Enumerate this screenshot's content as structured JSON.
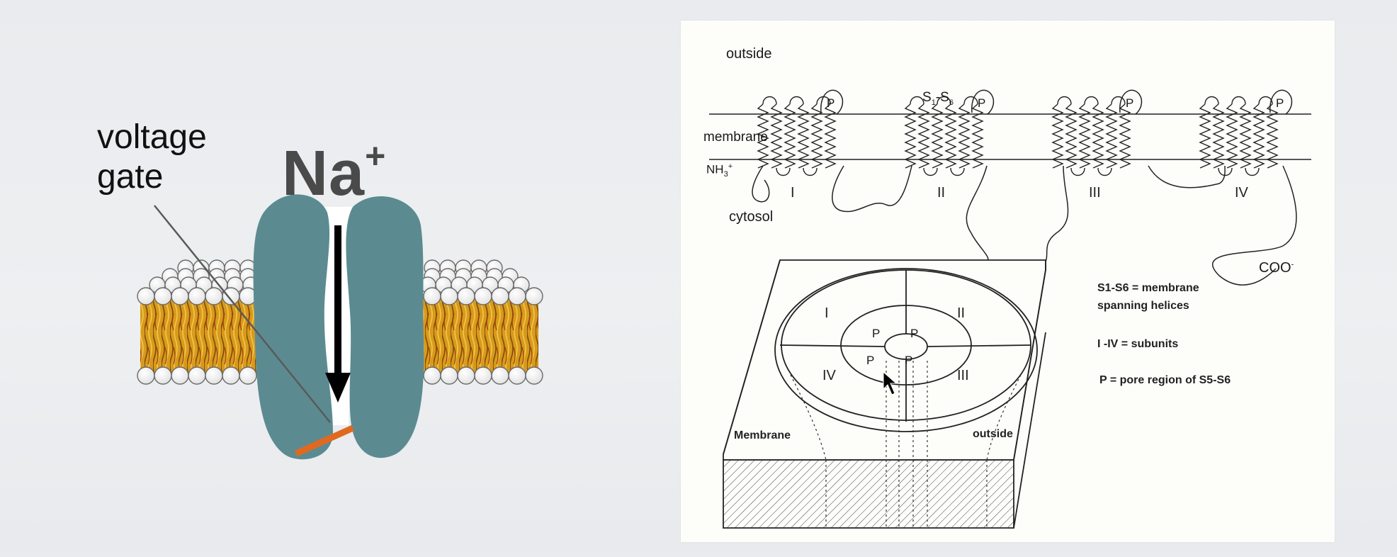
{
  "left": {
    "voltage_gate_line1": "voltage",
    "voltage_gate_line2": "gate",
    "ion_symbol": "Na",
    "ion_charge": "+",
    "colors": {
      "channel_protein": "#5b8b91",
      "gate": "#e0691f",
      "lipid_tails": "#b8740f",
      "arrow": "#000000"
    }
  },
  "right": {
    "outside_top": "outside",
    "membrane": "membrane",
    "nh3": "NH",
    "nh3_sub": "3",
    "nh3_sup": "+",
    "cytosol": "cytosol",
    "s_label_a": "S",
    "s_label_a_sub": "1",
    "s_label_dash": "-S",
    "s_label_b_sub": "6",
    "domains": [
      "I",
      "II",
      "III",
      "IV"
    ],
    "pore_letter": "P",
    "coo": "COO",
    "coo_sup": "-",
    "legend": [
      "S1-S6 = membrane",
      "spanning helices",
      "I -IV = subunits",
      "P = pore region of S5-S6"
    ],
    "box_membrane": "Membrane",
    "box_outside": "outside",
    "ring_subunits": [
      "I",
      "II",
      "III",
      "IV"
    ],
    "ring_pores": [
      "P",
      "P",
      "P",
      "P"
    ]
  }
}
